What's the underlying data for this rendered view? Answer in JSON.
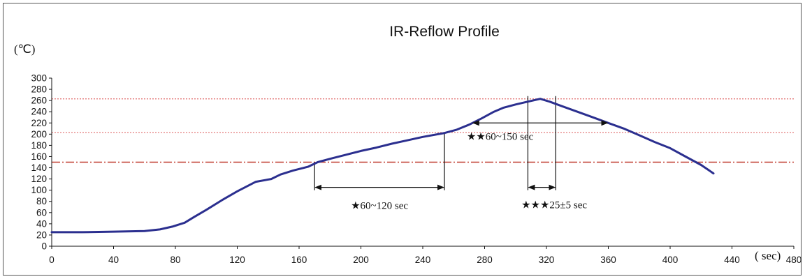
{
  "chart_data": {
    "type": "line",
    "title": "IR-Reflow Profile",
    "ylabel": "(℃)",
    "xlabel": "( sec)",
    "xlim": [
      0,
      480
    ],
    "ylim": [
      0,
      300
    ],
    "x_ticks": [
      0,
      40,
      80,
      120,
      160,
      200,
      240,
      280,
      320,
      360,
      400,
      440,
      480
    ],
    "y_ticks": [
      0,
      20,
      40,
      60,
      80,
      100,
      120,
      140,
      160,
      180,
      200,
      220,
      240,
      260,
      280,
      300
    ],
    "series": [
      {
        "color": "#2b2f8f",
        "x": [
          0,
          20,
          40,
          60,
          70,
          78,
          86,
          92,
          100,
          110,
          120,
          132,
          142,
          148,
          156,
          166,
          172,
          180,
          190,
          200,
          210,
          220,
          230,
          240,
          254,
          262,
          270,
          278,
          286,
          292,
          300,
          308,
          316,
          322,
          330,
          340,
          350,
          360,
          370,
          380,
          390,
          400,
          410,
          420,
          428
        ],
        "y": [
          25,
          25,
          26,
          27,
          30,
          35,
          42,
          52,
          65,
          82,
          98,
          115,
          120,
          128,
          135,
          142,
          150,
          156,
          163,
          170,
          176,
          183,
          189,
          195,
          202,
          208,
          217,
          228,
          240,
          247,
          253,
          258,
          263,
          258,
          250,
          240,
          230,
          220,
          210,
          198,
          186,
          175,
          160,
          145,
          130
        ]
      }
    ],
    "reference_lines": [
      {
        "y": 263,
        "color": "#e06c6c",
        "style": "dotted"
      },
      {
        "y": 203,
        "color": "#e06c6c",
        "style": "dotted"
      },
      {
        "y": 150,
        "color": "#c0392b",
        "style": "dash-dot"
      }
    ],
    "intervals": [
      {
        "x_start": 170,
        "x_end": 254,
        "y": 105,
        "label": "★60~120 sec"
      },
      {
        "x_start": 272,
        "x_end": 360,
        "y": 220,
        "label": "★★60~150 sec"
      },
      {
        "x_start": 308,
        "x_end": 326,
        "y": 105,
        "label": "★★★25±5 sec"
      }
    ],
    "vertical_markers": [
      {
        "x": 170,
        "y_bottom": 100,
        "y_top": 150
      },
      {
        "x": 254,
        "y_bottom": 100,
        "y_top": 203
      },
      {
        "x": 308,
        "y_bottom": 100,
        "y_top": 268
      },
      {
        "x": 326,
        "y_bottom": 100,
        "y_top": 268
      }
    ],
    "grid": false
  }
}
